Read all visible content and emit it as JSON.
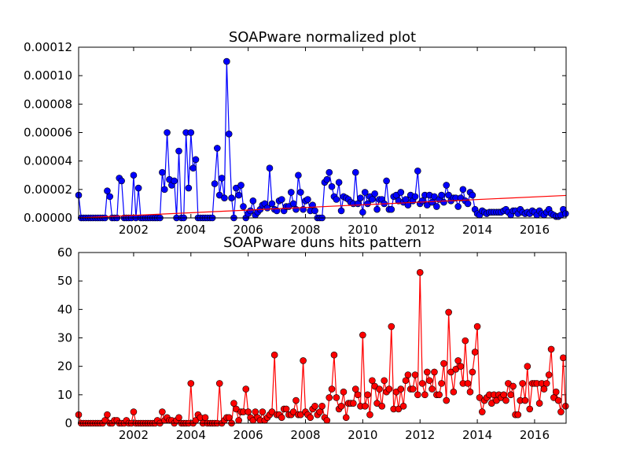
{
  "chart_data": [
    {
      "type": "line",
      "title": "SOAPware normalized plot",
      "xlim": [
        2000.08,
        2017.1
      ],
      "xticks": [
        2002,
        2004,
        2006,
        2008,
        2010,
        2012,
        2014,
        2016
      ],
      "ylim": [
        0,
        0.00012
      ],
      "yticks": [
        {
          "value": 0,
          "label": "0.00000"
        },
        {
          "value": 2e-05,
          "label": "0.00002"
        },
        {
          "value": 4e-05,
          "label": "0.00004"
        },
        {
          "value": 6e-05,
          "label": "0.00006"
        },
        {
          "value": 8e-05,
          "label": "0.00008"
        },
        {
          "value": 0.0001,
          "label": "0.00010"
        },
        {
          "value": 0.00012,
          "label": "0.00012"
        }
      ],
      "x": [
        2000.08,
        2000.17,
        2000.25,
        2000.33,
        2000.42,
        2000.5,
        2000.58,
        2000.67,
        2000.75,
        2000.83,
        2000.92,
        2001,
        2001.08,
        2001.17,
        2001.25,
        2001.33,
        2001.42,
        2001.5,
        2001.58,
        2001.67,
        2001.75,
        2001.83,
        2001.92,
        2002,
        2002.08,
        2002.17,
        2002.25,
        2002.33,
        2002.42,
        2002.5,
        2002.58,
        2002.67,
        2002.75,
        2002.83,
        2002.92,
        2003,
        2003.08,
        2003.17,
        2003.25,
        2003.33,
        2003.42,
        2003.5,
        2003.58,
        2003.67,
        2003.75,
        2003.83,
        2003.92,
        2004,
        2004.08,
        2004.17,
        2004.25,
        2004.33,
        2004.42,
        2004.5,
        2004.58,
        2004.67,
        2004.75,
        2004.83,
        2004.92,
        2005,
        2005.08,
        2005.17,
        2005.25,
        2005.33,
        2005.42,
        2005.5,
        2005.58,
        2005.67,
        2005.75,
        2005.83,
        2005.92,
        2006,
        2006.08,
        2006.17,
        2006.25,
        2006.33,
        2006.42,
        2006.5,
        2006.58,
        2006.67,
        2006.75,
        2006.83,
        2006.92,
        2007,
        2007.08,
        2007.17,
        2007.25,
        2007.33,
        2007.42,
        2007.5,
        2007.58,
        2007.67,
        2007.75,
        2007.83,
        2007.92,
        2008,
        2008.08,
        2008.17,
        2008.25,
        2008.33,
        2008.42,
        2008.5,
        2008.58,
        2008.67,
        2008.75,
        2008.83,
        2008.92,
        2009,
        2009.08,
        2009.17,
        2009.25,
        2009.33,
        2009.42,
        2009.5,
        2009.58,
        2009.67,
        2009.75,
        2009.83,
        2009.92,
        2010,
        2010.08,
        2010.17,
        2010.25,
        2010.33,
        2010.42,
        2010.5,
        2010.58,
        2010.67,
        2010.75,
        2010.83,
        2010.92,
        2011,
        2011.08,
        2011.17,
        2011.25,
        2011.33,
        2011.42,
        2011.5,
        2011.58,
        2011.67,
        2011.75,
        2011.83,
        2011.92,
        2012,
        2012.08,
        2012.17,
        2012.25,
        2012.33,
        2012.42,
        2012.5,
        2012.58,
        2012.67,
        2012.75,
        2012.83,
        2012.92,
        2013,
        2013.08,
        2013.17,
        2013.25,
        2013.33,
        2013.42,
        2013.5,
        2013.58,
        2013.67,
        2013.75,
        2013.83,
        2013.92,
        2014,
        2014.08,
        2014.17,
        2014.25,
        2014.33,
        2014.42,
        2014.5,
        2014.58,
        2014.67,
        2014.75,
        2014.83,
        2014.92,
        2015,
        2015.08,
        2015.17,
        2015.25,
        2015.33,
        2015.42,
        2015.5,
        2015.58,
        2015.67,
        2015.75,
        2015.83,
        2015.92,
        2016,
        2016.08,
        2016.17,
        2016.25,
        2016.33,
        2016.42,
        2016.5,
        2016.58,
        2016.67,
        2016.75,
        2016.83,
        2016.92,
        2017,
        2017.08
      ],
      "series": [
        {
          "color": "#0000ff",
          "marker": "circle",
          "values": [
            1.6e-05,
            0,
            0,
            0,
            0,
            0,
            0,
            0,
            0,
            0,
            0,
            0,
            1.9e-05,
            1.5e-05,
            0,
            0,
            0,
            2.8e-05,
            2.6e-05,
            0,
            0,
            0,
            0,
            3e-05,
            0,
            2.1e-05,
            0,
            0,
            0,
            0,
            0,
            0,
            0,
            0,
            0,
            3.2e-05,
            2e-05,
            6e-05,
            2.7e-05,
            2.3e-05,
            2.6e-05,
            0,
            4.7e-05,
            0,
            0,
            6e-05,
            2.1e-05,
            6e-05,
            3.5e-05,
            4.1e-05,
            0,
            0,
            0,
            0,
            0,
            0,
            0,
            2.4e-05,
            4.9e-05,
            1.6e-05,
            2.8e-05,
            1.4e-05,
            0.00011,
            5.9e-05,
            1.4e-05,
            0,
            2.1e-05,
            1.6e-05,
            2.3e-05,
            8e-06,
            0,
            3e-06,
            5e-06,
            1.2e-05,
            2e-06,
            4e-06,
            6e-06,
            9e-06,
            1e-05,
            7e-06,
            3.5e-05,
            1e-05,
            6e-06,
            5e-06,
            1.2e-05,
            1.3e-05,
            5e-06,
            8e-06,
            8e-06,
            1.8e-05,
            1e-05,
            6e-06,
            3e-05,
            1.8e-05,
            6e-06,
            1.2e-05,
            1.3e-05,
            5e-06,
            9e-06,
            5e-06,
            0,
            0,
            0,
            2.5e-05,
            2.7e-05,
            3.2e-05,
            2.2e-05,
            1.5e-05,
            1.3e-05,
            2.5e-05,
            5e-06,
            1.5e-05,
            1.4e-05,
            1.3e-05,
            1.1e-05,
            1e-05,
            3.2e-05,
            1e-05,
            1.4e-05,
            4e-06,
            1.8e-05,
            1e-05,
            1.5e-05,
            1.3e-05,
            1.7e-05,
            6e-06,
            1.3e-05,
            1.3e-05,
            1e-05,
            2.6e-05,
            6e-06,
            6e-06,
            1.5e-05,
            1.6e-05,
            1.2e-05,
            1.8e-05,
            1.1e-05,
            1.3e-05,
            9e-06,
            1.6e-05,
            1.2e-05,
            1.5e-05,
            3.3e-05,
            1e-05,
            1.2e-05,
            1.6e-05,
            9e-06,
            1.6e-05,
            1.1e-05,
            1.5e-05,
            8e-06,
            1.3e-05,
            1.6e-05,
            1.1e-05,
            2.3e-05,
            1.6e-05,
            1.2e-05,
            1.4e-05,
            1.4e-05,
            8e-06,
            1.4e-05,
            2e-05,
            1.2e-05,
            1e-05,
            1.8e-05,
            1.6e-05,
            6e-06,
            3e-06,
            2e-06,
            5e-06,
            4e-06,
            3e-06,
            4e-06,
            4e-06,
            4e-06,
            4e-06,
            4e-06,
            4e-06,
            5e-06,
            6e-06,
            4e-06,
            2e-06,
            5e-06,
            5e-06,
            3e-06,
            6e-06,
            4e-06,
            3e-06,
            4e-06,
            3e-06,
            5e-06,
            4e-06,
            2e-06,
            5e-06,
            3e-06,
            2e-06,
            4e-06,
            6e-06,
            3e-06,
            2e-06,
            1e-06,
            1e-06,
            2e-06,
            6e-06,
            3e-06
          ]
        },
        {
          "color": "#ff0000",
          "x": [
            2000.08,
            2017.1
          ],
          "values": [
            0,
            1.58e-05
          ]
        }
      ]
    },
    {
      "type": "line",
      "title": "SOAPware duns hits pattern",
      "xlim": [
        2000.08,
        2017.1
      ],
      "xticks": [
        2002,
        2004,
        2006,
        2008,
        2010,
        2012,
        2014,
        2016
      ],
      "ylim": [
        0,
        60
      ],
      "yticks": [
        0,
        10,
        20,
        30,
        40,
        50,
        60
      ],
      "x": [
        2000.08,
        2000.17,
        2000.25,
        2000.33,
        2000.42,
        2000.5,
        2000.58,
        2000.67,
        2000.75,
        2000.83,
        2000.92,
        2001,
        2001.08,
        2001.17,
        2001.25,
        2001.33,
        2001.42,
        2001.5,
        2001.58,
        2001.67,
        2001.75,
        2001.83,
        2001.92,
        2002,
        2002.08,
        2002.17,
        2002.25,
        2002.33,
        2002.42,
        2002.5,
        2002.58,
        2002.67,
        2002.75,
        2002.83,
        2002.92,
        2003,
        2003.08,
        2003.17,
        2003.25,
        2003.33,
        2003.42,
        2003.5,
        2003.58,
        2003.67,
        2003.75,
        2003.83,
        2003.92,
        2004,
        2004.08,
        2004.17,
        2004.25,
        2004.33,
        2004.42,
        2004.5,
        2004.58,
        2004.67,
        2004.75,
        2004.83,
        2004.92,
        2005,
        2005.08,
        2005.17,
        2005.25,
        2005.33,
        2005.42,
        2005.5,
        2005.58,
        2005.67,
        2005.75,
        2005.83,
        2005.92,
        2006,
        2006.08,
        2006.17,
        2006.25,
        2006.33,
        2006.42,
        2006.5,
        2006.58,
        2006.67,
        2006.75,
        2006.83,
        2006.92,
        2007,
        2007.08,
        2007.17,
        2007.25,
        2007.33,
        2007.42,
        2007.5,
        2007.58,
        2007.67,
        2007.75,
        2007.83,
        2007.92,
        2008,
        2008.08,
        2008.17,
        2008.25,
        2008.33,
        2008.42,
        2008.5,
        2008.58,
        2008.67,
        2008.75,
        2008.83,
        2008.92,
        2009,
        2009.08,
        2009.17,
        2009.25,
        2009.33,
        2009.42,
        2009.5,
        2009.58,
        2009.67,
        2009.75,
        2009.83,
        2009.92,
        2010,
        2010.08,
        2010.17,
        2010.25,
        2010.33,
        2010.42,
        2010.5,
        2010.58,
        2010.67,
        2010.75,
        2010.83,
        2010.92,
        2011,
        2011.08,
        2011.17,
        2011.25,
        2011.33,
        2011.42,
        2011.5,
        2011.58,
        2011.67,
        2011.75,
        2011.83,
        2011.92,
        2012,
        2012.08,
        2012.17,
        2012.25,
        2012.33,
        2012.42,
        2012.5,
        2012.58,
        2012.67,
        2012.75,
        2012.83,
        2012.92,
        2013,
        2013.08,
        2013.17,
        2013.25,
        2013.33,
        2013.42,
        2013.5,
        2013.58,
        2013.67,
        2013.75,
        2013.83,
        2013.92,
        2014,
        2014.08,
        2014.17,
        2014.25,
        2014.33,
        2014.42,
        2014.5,
        2014.58,
        2014.67,
        2014.75,
        2014.83,
        2014.92,
        2015,
        2015.08,
        2015.17,
        2015.25,
        2015.33,
        2015.42,
        2015.5,
        2015.58,
        2015.67,
        2015.75,
        2015.83,
        2015.92,
        2016,
        2016.08,
        2016.17,
        2016.25,
        2016.33,
        2016.42,
        2016.5,
        2016.58,
        2016.67,
        2016.75,
        2016.83,
        2016.92,
        2017,
        2017.08
      ],
      "series": [
        {
          "color": "#ff0000",
          "marker": "circle",
          "values": [
            3,
            0,
            0,
            0,
            0,
            0,
            0,
            0,
            0,
            0,
            0,
            1,
            3,
            0,
            0,
            1,
            1,
            0,
            0,
            0,
            1,
            0,
            0,
            4,
            0,
            0,
            0,
            0,
            0,
            0,
            0,
            0,
            0,
            1,
            0,
            4,
            1,
            2,
            1,
            1,
            0,
            1,
            2,
            0,
            0,
            0,
            0,
            14,
            0,
            1,
            3,
            2,
            0,
            2,
            0,
            0,
            0,
            0,
            0,
            14,
            0,
            1,
            2,
            2,
            0,
            7,
            5,
            1,
            4,
            4,
            12,
            4,
            2,
            1,
            4,
            2,
            1,
            4,
            1,
            2,
            3,
            4,
            24,
            3,
            3,
            2,
            5,
            5,
            3,
            3,
            4,
            8,
            3,
            3,
            22,
            4,
            3,
            2,
            5,
            6,
            3,
            4,
            6,
            2,
            1,
            9,
            12,
            24,
            9,
            5,
            6,
            11,
            2,
            7,
            7,
            7,
            12,
            10,
            6,
            31,
            6,
            10,
            3,
            15,
            13,
            7,
            12,
            6,
            15,
            11,
            12,
            34,
            5,
            11,
            5,
            12,
            6,
            15,
            17,
            12,
            12,
            17,
            10,
            53,
            14,
            10,
            18,
            15,
            12,
            18,
            10,
            10,
            14,
            21,
            8,
            39,
            18,
            11,
            19,
            22,
            20,
            14,
            29,
            14,
            11,
            18,
            25,
            34,
            9,
            4,
            8,
            9,
            10,
            7,
            10,
            8,
            10,
            9,
            10,
            8,
            14,
            10,
            13,
            3,
            3,
            8,
            14,
            8,
            20,
            5,
            14,
            14,
            14,
            7,
            14,
            12,
            14,
            17,
            26,
            9,
            11,
            8,
            4,
            23,
            6
          ]
        }
      ]
    }
  ]
}
